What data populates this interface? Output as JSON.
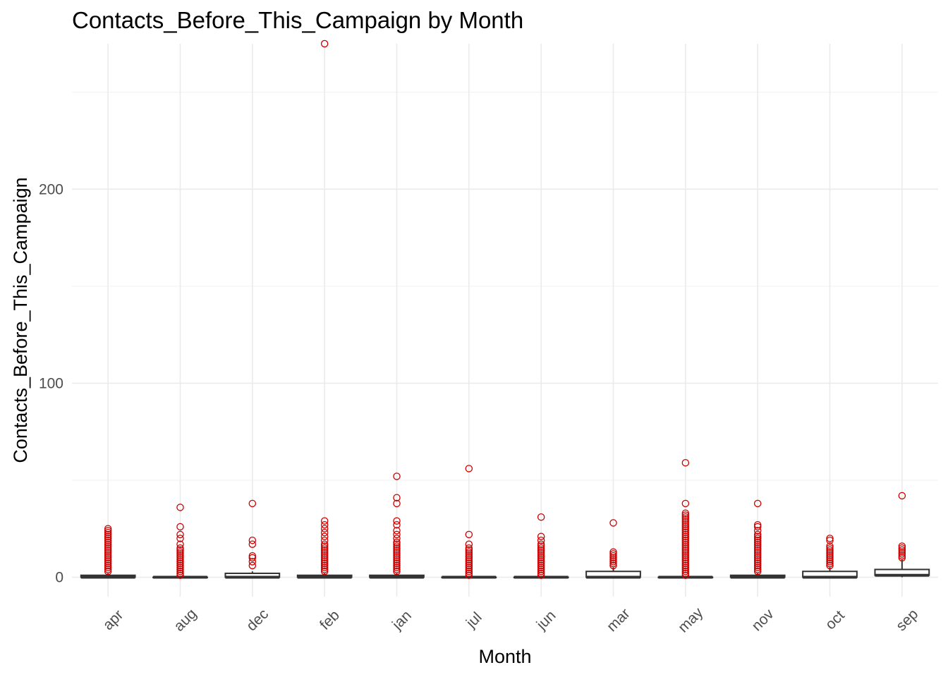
{
  "chart_data": {
    "type": "boxplot",
    "title": "Contacts_Before_This_Campaign by Month",
    "xlabel": "Month",
    "ylabel": "Contacts_Before_This_Campaign",
    "ylim": [
      -10,
      275
    ],
    "yticks": [
      0,
      100,
      200
    ],
    "grid": true,
    "outlier_color": "#cc0000",
    "box_color": "#333333",
    "categories": [
      "apr",
      "aug",
      "dec",
      "feb",
      "jan",
      "jul",
      "jun",
      "mar",
      "may",
      "nov",
      "oct",
      "sep"
    ],
    "boxes": [
      {
        "q1": 0,
        "median": 0,
        "q3": 1,
        "whisker_low": 0,
        "whisker_high": 2,
        "outliers": [
          3,
          4,
          5,
          6,
          7,
          8,
          9,
          10,
          11,
          12,
          13,
          14,
          15,
          16,
          17,
          18,
          19,
          20,
          21,
          22,
          23,
          24,
          25
        ]
      },
      {
        "q1": 0,
        "median": 0,
        "q3": 0,
        "whisker_low": 0,
        "whisker_high": 0,
        "outliers": [
          1,
          2,
          3,
          4,
          5,
          6,
          7,
          8,
          9,
          10,
          11,
          12,
          13,
          14,
          15,
          17,
          20,
          22,
          26,
          36
        ]
      },
      {
        "q1": 0,
        "median": 0,
        "q3": 2,
        "whisker_low": 0,
        "whisker_high": 3,
        "outliers": [
          6,
          8,
          10,
          11,
          17,
          19,
          38
        ]
      },
      {
        "q1": 0,
        "median": 0,
        "q3": 1,
        "whisker_low": 0,
        "whisker_high": 2,
        "outliers": [
          3,
          4,
          5,
          6,
          7,
          8,
          9,
          10,
          11,
          12,
          13,
          14,
          15,
          16,
          17,
          19,
          21,
          23,
          25,
          27,
          29,
          275
        ]
      },
      {
        "q1": 0,
        "median": 0,
        "q3": 1,
        "whisker_low": 0,
        "whisker_high": 2,
        "outliers": [
          3,
          4,
          5,
          6,
          7,
          8,
          9,
          10,
          11,
          12,
          13,
          14,
          15,
          16,
          17,
          18,
          20,
          22,
          24,
          27,
          29,
          38,
          41,
          52
        ]
      },
      {
        "q1": 0,
        "median": 0,
        "q3": 0,
        "whisker_low": 0,
        "whisker_high": 0,
        "outliers": [
          1,
          2,
          3,
          4,
          5,
          6,
          7,
          8,
          9,
          10,
          11,
          12,
          13,
          14,
          15,
          17,
          22,
          56
        ]
      },
      {
        "q1": 0,
        "median": 0,
        "q3": 0,
        "whisker_low": 0,
        "whisker_high": 0,
        "outliers": [
          1,
          2,
          3,
          4,
          5,
          6,
          7,
          8,
          9,
          10,
          11,
          12,
          13,
          14,
          15,
          16,
          17,
          19,
          21,
          31
        ]
      },
      {
        "q1": 0,
        "median": 0,
        "q3": 3,
        "whisker_low": 0,
        "whisker_high": 5,
        "outliers": [
          6,
          7,
          8,
          9,
          10,
          11,
          12,
          13,
          28
        ]
      },
      {
        "q1": 0,
        "median": 0,
        "q3": 0,
        "whisker_low": 0,
        "whisker_high": 0,
        "outliers": [
          1,
          2,
          3,
          4,
          5,
          6,
          7,
          8,
          9,
          10,
          11,
          12,
          13,
          14,
          15,
          16,
          17,
          18,
          19,
          20,
          21,
          22,
          23,
          24,
          25,
          26,
          27,
          28,
          29,
          30,
          31,
          32,
          33,
          38,
          59
        ]
      },
      {
        "q1": 0,
        "median": 0,
        "q3": 1,
        "whisker_low": 0,
        "whisker_high": 2,
        "outliers": [
          3,
          4,
          5,
          6,
          7,
          8,
          9,
          10,
          11,
          12,
          13,
          14,
          15,
          16,
          17,
          18,
          19,
          20,
          21,
          22,
          24,
          26,
          27,
          38
        ]
      },
      {
        "q1": 0,
        "median": 0,
        "q3": 3,
        "whisker_low": 0,
        "whisker_high": 5,
        "outliers": [
          6,
          7,
          8,
          9,
          10,
          11,
          12,
          13,
          14,
          15,
          16,
          19,
          20
        ]
      },
      {
        "q1": 1,
        "median": 1,
        "q3": 4,
        "whisker_low": 0,
        "whisker_high": 9,
        "outliers": [
          10,
          11,
          12,
          13,
          14,
          15,
          16,
          42
        ]
      }
    ]
  }
}
